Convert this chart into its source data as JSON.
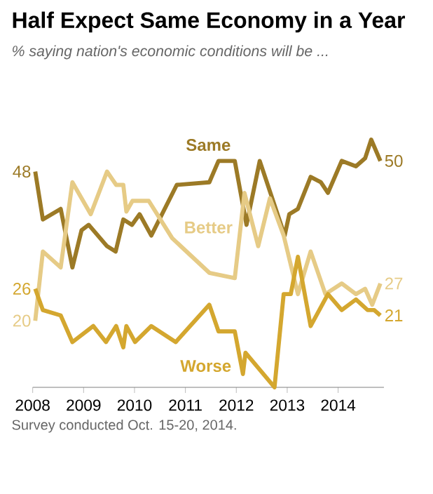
{
  "chart_data": {
    "type": "line",
    "title": "Half Expect Same Economy in a Year",
    "subtitle": "*% saying nation's economic conditions will be ...*",
    "xlim": [
      2008,
      2014.9
    ],
    "xticks": [
      2008,
      2009,
      2010,
      2011,
      2012,
      2013,
      2014
    ],
    "tick_labels": "x",
    "series": [
      {
        "name": "Same",
        "color": "#9c7a26",
        "x": [
          2008.05,
          2008.2,
          2008.55,
          2008.78,
          2008.96,
          2009.1,
          2009.46,
          2009.63,
          2009.78,
          2009.95,
          2010.1,
          2010.33,
          2010.83,
          2011.47,
          2011.65,
          2011.97,
          2012.2,
          2012.46,
          2012.95,
          2013.04,
          2013.21,
          2013.46,
          2013.66,
          2013.8,
          2014.07,
          2014.35,
          2014.53,
          2014.65,
          2014.83
        ],
        "values": [
          48,
          39,
          41,
          30,
          37,
          38,
          34,
          33,
          39,
          38,
          40,
          36,
          45.5,
          46,
          50,
          50,
          38,
          50,
          36,
          40,
          41,
          47,
          46,
          44,
          50,
          49,
          50.5,
          54,
          50
        ],
        "value_labels": [
          "48",
          null,
          null,
          null,
          null,
          null,
          null,
          null,
          null,
          null,
          null,
          null,
          null,
          null,
          null,
          null,
          null,
          null,
          null,
          null,
          null,
          null,
          null,
          null,
          null,
          null,
          null,
          null,
          "50"
        ]
      },
      {
        "name": "Better",
        "color": "#e6cb86",
        "x": [
          2008.05,
          2008.2,
          2008.55,
          2008.78,
          2009.14,
          2009.46,
          2009.64,
          2009.78,
          2009.84,
          2009.96,
          2010.28,
          2010.74,
          2011.47,
          2011.97,
          2012.16,
          2012.43,
          2012.66,
          2012.93,
          2013.21,
          2013.46,
          2013.75,
          2014.07,
          2014.35,
          2014.53,
          2014.67,
          2014.83
        ],
        "values": [
          20,
          33,
          30,
          46,
          40,
          48,
          45.5,
          45.5,
          40.5,
          42.5,
          42.5,
          35.5,
          29,
          28,
          44,
          34,
          43,
          36,
          25,
          33,
          25,
          27,
          25,
          26,
          23,
          27
        ],
        "value_labels": [
          "20",
          null,
          null,
          null,
          null,
          null,
          null,
          null,
          null,
          null,
          null,
          null,
          null,
          null,
          null,
          null,
          null,
          null,
          null,
          null,
          null,
          null,
          null,
          null,
          null,
          "27"
        ]
      },
      {
        "name": "Worse",
        "color": "#d4a72f",
        "x": [
          2008.05,
          2008.2,
          2008.55,
          2008.78,
          2009.19,
          2009.44,
          2009.64,
          2009.78,
          2009.84,
          2010.01,
          2010.33,
          2010.81,
          2011.47,
          2011.65,
          2011.97,
          2012.13,
          2012.18,
          2012.75,
          2012.93,
          2013.07,
          2013.21,
          2013.46,
          2013.8,
          2014.07,
          2014.35,
          2014.58,
          2014.71,
          2014.83
        ],
        "values": [
          26,
          22,
          21,
          16,
          19,
          16,
          19,
          15,
          19,
          16,
          19,
          16,
          23,
          18,
          18,
          10,
          14,
          7.5,
          25,
          25,
          32,
          19,
          25,
          22,
          24,
          22,
          22,
          21
        ],
        "value_labels": [
          "26",
          null,
          null,
          null,
          null,
          null,
          null,
          null,
          null,
          null,
          null,
          null,
          null,
          null,
          null,
          null,
          null,
          null,
          null,
          null,
          null,
          null,
          null,
          null,
          null,
          null,
          null,
          "21"
        ]
      }
    ],
    "annotations": [
      "Survey conducted Oct. 15-20, 2014."
    ]
  }
}
